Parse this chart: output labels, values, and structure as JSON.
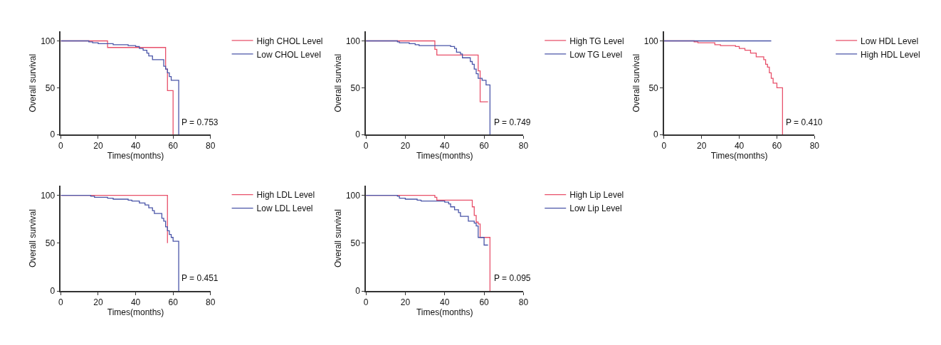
{
  "chart_data": [
    {
      "type": "step",
      "xlabel": "Times(months)",
      "ylabel": "Overall survival",
      "xlim": [
        0,
        80
      ],
      "ylim": [
        0,
        110
      ],
      "xticks": [
        0,
        20,
        40,
        60,
        80
      ],
      "yticks": [
        0,
        50,
        100
      ],
      "legend": "top right",
      "annotations": [
        "P = 0.753"
      ],
      "series": [
        {
          "name": "High CHOL Level",
          "color": "#e8506a",
          "x": [
            0,
            25,
            56,
            57,
            60
          ],
          "values": [
            100,
            93,
            70,
            47,
            0
          ]
        },
        {
          "name": "Low CHOL Level",
          "color": "#4a55a8",
          "x": [
            0,
            15,
            17,
            20,
            28,
            36,
            40,
            42,
            44,
            46,
            47,
            49,
            55,
            56,
            57,
            58,
            59,
            63
          ],
          "values": [
            100,
            99,
            98,
            97,
            96,
            95,
            94,
            92,
            90,
            87,
            84,
            80,
            73,
            70,
            66,
            62,
            58,
            0
          ]
        }
      ]
    },
    {
      "type": "step",
      "xlabel": "Times(months)",
      "ylabel": "Overall survival",
      "xlim": [
        0,
        80
      ],
      "ylim": [
        0,
        110
      ],
      "xticks": [
        0,
        20,
        40,
        60,
        80
      ],
      "yticks": [
        0,
        50,
        100
      ],
      "legend": "top right",
      "annotations": [
        "P = 0.749"
      ],
      "series": [
        {
          "name": "High TG Level",
          "color": "#e8506a",
          "x": [
            0,
            35,
            36,
            57,
            58,
            62
          ],
          "values": [
            100,
            91,
            85,
            68,
            35,
            35
          ]
        },
        {
          "name": "Low TG Level",
          "color": "#4a55a8",
          "x": [
            0,
            16,
            17,
            22,
            25,
            27,
            43,
            45,
            46,
            48,
            49,
            53,
            54,
            55,
            56,
            57,
            59,
            61,
            63
          ],
          "values": [
            100,
            99,
            98,
            97,
            96,
            95,
            94,
            92,
            88,
            86,
            82,
            78,
            75,
            70,
            65,
            60,
            58,
            53,
            0
          ]
        }
      ]
    },
    {
      "type": "step",
      "xlabel": "Times(months)",
      "ylabel": "Overall survival",
      "xlim": [
        0,
        80
      ],
      "ylim": [
        0,
        110
      ],
      "xticks": [
        0,
        20,
        40,
        60,
        80
      ],
      "yticks": [
        0,
        50,
        100
      ],
      "legend": "top right",
      "annotations": [
        "P = 0.410"
      ],
      "series": [
        {
          "name": "Low HDL Level",
          "color": "#e8506a",
          "x": [
            0,
            16,
            18,
            27,
            30,
            38,
            40,
            43,
            46,
            49,
            53,
            54,
            55,
            56,
            57,
            58,
            60,
            63
          ],
          "values": [
            100,
            99,
            98,
            96,
            95,
            94,
            92,
            90,
            87,
            83,
            80,
            75,
            72,
            66,
            60,
            55,
            50,
            0
          ]
        },
        {
          "name": "High HDL Level",
          "color": "#4a55a8",
          "x": [
            0,
            57
          ],
          "values": [
            100,
            100
          ]
        }
      ]
    },
    {
      "type": "step",
      "xlabel": "Times(months)",
      "ylabel": "Overall survival",
      "xlim": [
        0,
        80
      ],
      "ylim": [
        0,
        110
      ],
      "xticks": [
        0,
        20,
        40,
        60,
        80
      ],
      "yticks": [
        0,
        50,
        100
      ],
      "legend": "top right",
      "annotations": [
        "P = 0.451"
      ],
      "series": [
        {
          "name": "High LDL Level",
          "color": "#e8506a",
          "x": [
            0,
            57
          ],
          "values": [
            100,
            50
          ]
        },
        {
          "name": "Low LDL Level",
          "color": "#4a55a8",
          "x": [
            0,
            16,
            18,
            25,
            28,
            36,
            38,
            42,
            45,
            47,
            49,
            50,
            54,
            55,
            56,
            57,
            58,
            59,
            60,
            63
          ],
          "values": [
            100,
            99,
            98,
            97,
            96,
            95,
            94,
            92,
            90,
            87,
            84,
            81,
            76,
            73,
            67,
            63,
            59,
            56,
            52,
            0
          ]
        }
      ]
    },
    {
      "type": "step",
      "xlabel": "Times(months)",
      "ylabel": "Overall survival",
      "xlim": [
        0,
        80
      ],
      "ylim": [
        0,
        110
      ],
      "xticks": [
        0,
        20,
        40,
        60,
        80
      ],
      "yticks": [
        0,
        50,
        100
      ],
      "legend": "top right",
      "annotations": [
        "P = 0.095"
      ],
      "series": [
        {
          "name": "High Lip Level",
          "color": "#e8506a",
          "x": [
            0,
            35,
            36,
            54,
            55,
            56,
            57,
            58,
            63
          ],
          "values": [
            100,
            98,
            95,
            88,
            79,
            72,
            70,
            56,
            0
          ]
        },
        {
          "name": "Low Lip Level",
          "color": "#4a55a8",
          "x": [
            0,
            16,
            17,
            20,
            26,
            28,
            40,
            42,
            43,
            45,
            47,
            48,
            52,
            55,
            56,
            57,
            60,
            62
          ],
          "values": [
            100,
            99,
            97,
            96,
            95,
            94,
            93,
            91,
            88,
            85,
            82,
            78,
            73,
            71,
            68,
            56,
            48,
            48
          ]
        }
      ]
    }
  ]
}
